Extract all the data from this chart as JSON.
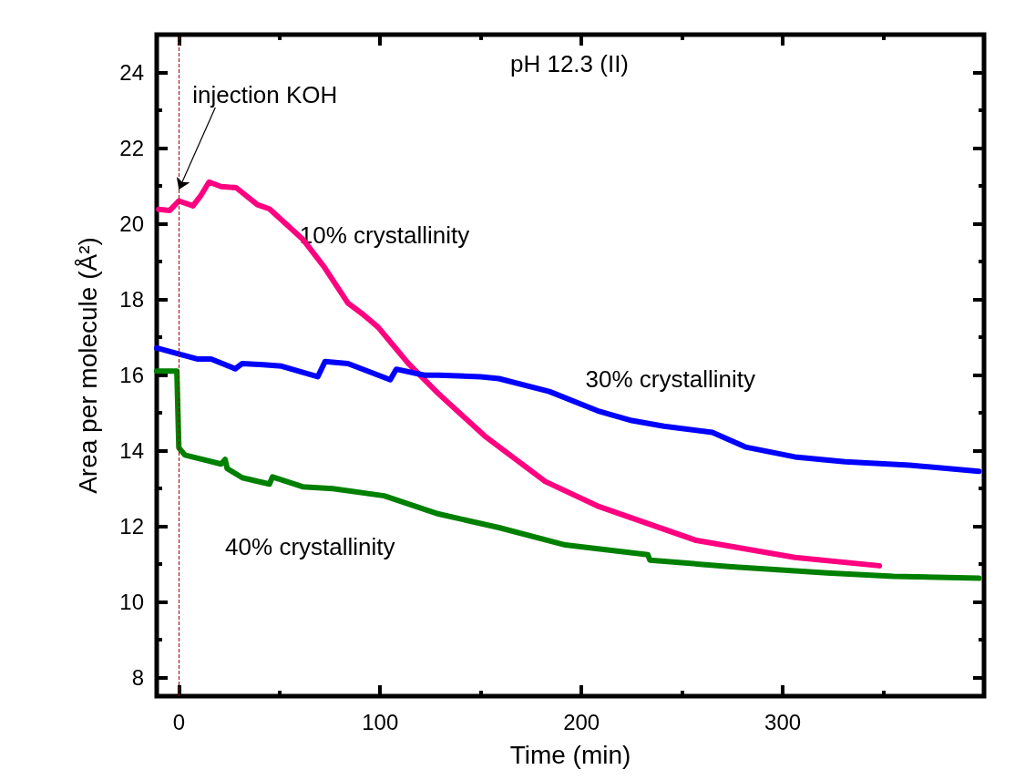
{
  "chart_data": {
    "type": "line",
    "title": "pH 12.3 (II)",
    "xlabel": "Time (min)",
    "ylabel": "Area per molecule (Å²)",
    "xlim": [
      -11,
      400
    ],
    "ylim": [
      7.5,
      25
    ],
    "xticks": [
      0,
      {
        "value": 50,
        "label": null
      },
      100,
      {
        "value": 150,
        "label": null
      },
      200,
      {
        "value": 250,
        "label": null
      },
      300,
      {
        "value": 350,
        "label": null
      }
    ],
    "yticks": [
      8,
      {
        "value": 9,
        "label": null
      },
      10,
      {
        "value": 11,
        "label": null
      },
      12,
      {
        "value": 13,
        "label": null
      },
      14,
      {
        "value": 15,
        "label": null
      },
      16,
      {
        "value": 17,
        "label": null
      },
      18,
      {
        "value": 19,
        "label": null
      },
      20,
      {
        "value": 21,
        "label": null
      },
      22,
      {
        "value": 23,
        "label": null
      },
      24
    ],
    "marker": "none",
    "line_style": "solid",
    "series": [
      {
        "name": "10% crystallinity",
        "color": "#ff0080",
        "x": [
          -10,
          -4.5,
          0,
          7,
          11,
          15,
          21,
          28.5,
          39,
          45,
          61.5,
          72,
          84,
          91.5,
          99,
          106.5,
          114,
          129,
          152,
          182,
          208,
          257,
          306,
          348
        ],
        "values": [
          20.38,
          20.35,
          20.6,
          20.47,
          20.75,
          21.1,
          20.98,
          20.95,
          20.5,
          20.39,
          19.59,
          18.87,
          17.9,
          17.6,
          17.26,
          16.78,
          16.3,
          15.5,
          14.38,
          13.18,
          12.53,
          11.62,
          11.17,
          10.95
        ]
      },
      {
        "name": "30% crystallinity",
        "color": "#0000ff",
        "x": [
          -11,
          9,
          16,
          28,
          31.5,
          42,
          51,
          69,
          72.6,
          84,
          105,
          108,
          122,
          129,
          150,
          159,
          184,
          208,
          225,
          241,
          265,
          281.5,
          306,
          331,
          363,
          397.5
        ],
        "values": [
          16.71,
          16.42,
          16.42,
          16.16,
          16.3,
          16.27,
          16.23,
          15.95,
          16.35,
          16.3,
          15.87,
          16.15,
          15.99,
          15.99,
          15.95,
          15.9,
          15.56,
          15.05,
          14.79,
          14.64,
          14.48,
          14.09,
          13.83,
          13.7,
          13.61,
          13.45
        ]
      },
      {
        "name": "40% crystallinity",
        "color": "#008000",
        "x": [
          -11,
          -1,
          0,
          3,
          21,
          23,
          24,
          31.5,
          45,
          46.5,
          61.5,
          76.5,
          102,
          129,
          159,
          192,
          233,
          234,
          273,
          322,
          355,
          397.5
        ],
        "values": [
          16.1,
          16.1,
          14.07,
          13.88,
          13.64,
          13.76,
          13.52,
          13.28,
          13.11,
          13.3,
          13.04,
          12.99,
          12.8,
          12.32,
          11.96,
          11.5,
          11.24,
          11.1,
          10.93,
          10.76,
          10.67,
          10.62
        ]
      }
    ],
    "ref_lines": [
      {
        "axis": "x",
        "value": 0,
        "color": "#a00000",
        "line_style": "dashed"
      }
    ],
    "annotations": [
      {
        "text": "injection KOH",
        "x": 0,
        "y": 20.9
      }
    ]
  }
}
